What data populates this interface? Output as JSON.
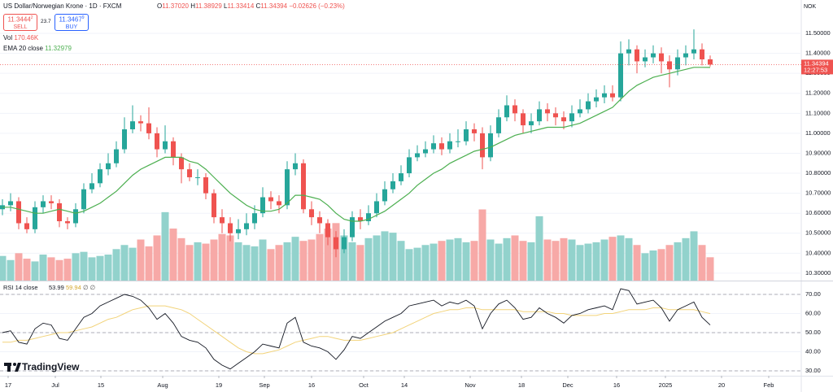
{
  "header": {
    "symbol": "US Dollar/Norwegian Krone · 1D · FXCM",
    "o_key": "O",
    "o": "11.37020",
    "h_key": "H",
    "h": "11.38929",
    "l_key": "L",
    "l": "11.33414",
    "c_key": "C",
    "change": "−0.02626 (−0.23%)",
    "sell_price": "11.3444",
    "sell_sup": "2",
    "sell": "SELL",
    "spread": "23.7",
    "buy_price": "11.3467",
    "buy_sup": "9",
    "buy": "BUY",
    "vol_key": "Vol",
    "vol": "170.46K",
    "currency": "NOK",
    "countdown": "12:27:53",
    "rsi_nulls": "∅ ∅",
    "logo": "TradingView"
  },
  "chart_data": [
    {
      "type": "candlestick",
      "up_color": "#26a69a",
      "down_color": "#ef5350",
      "xlim": [
        -0.3,
        98.2
      ],
      "ylim": [
        10.263,
        11.667
      ],
      "yticks": [
        {
          "value": 10.3,
          "label": "10.30000"
        },
        {
          "value": 10.4,
          "label": "10.40000"
        },
        {
          "value": 10.5,
          "label": "10.50000"
        },
        {
          "value": 10.6,
          "label": "10.60000"
        },
        {
          "value": 10.7,
          "label": "10.70000"
        },
        {
          "value": 10.8,
          "label": "10.80000"
        },
        {
          "value": 10.9,
          "label": "10.90000"
        },
        {
          "value": 11.0,
          "label": "11.00000"
        },
        {
          "value": 11.1,
          "label": "11.10000"
        },
        {
          "value": 11.2,
          "label": "11.20000"
        },
        {
          "value": 11.3,
          "label": "11.30000"
        },
        {
          "value": 11.4,
          "label": "11.40000"
        },
        {
          "value": 11.5,
          "label": "11.50000"
        }
      ],
      "open": [
        10.62,
        10.64,
        10.66,
        10.55,
        10.52,
        10.63,
        10.66,
        10.65,
        10.56,
        10.55,
        10.62,
        10.72,
        10.75,
        10.82,
        10.85,
        10.92,
        11.02,
        11.06,
        11.05,
        11.0,
        10.92,
        10.96,
        10.88,
        10.82,
        10.78,
        10.78,
        10.7,
        10.58,
        10.55,
        10.5,
        10.52,
        10.55,
        10.6,
        10.68,
        10.66,
        10.64,
        10.82,
        10.85,
        10.62,
        10.58,
        10.55,
        10.48,
        10.42,
        10.48,
        10.58,
        10.56,
        10.6,
        10.66,
        10.72,
        10.76,
        10.8,
        10.88,
        10.9,
        10.92,
        10.95,
        10.92,
        10.96,
        10.96,
        11.02,
        11.0,
        10.88,
        11.0,
        11.08,
        11.14,
        11.1,
        11.04,
        11.06,
        11.12,
        11.1,
        11.08,
        11.06,
        11.1,
        11.12,
        11.16,
        11.18,
        11.2,
        11.18,
        11.4,
        11.42,
        11.36,
        11.38,
        11.4,
        11.36,
        11.32,
        11.38,
        11.4,
        11.42,
        11.3702
      ],
      "high": [
        10.67,
        10.7,
        10.68,
        10.58,
        10.66,
        10.69,
        10.69,
        10.67,
        10.58,
        10.65,
        10.75,
        10.8,
        10.85,
        10.9,
        10.96,
        11.08,
        11.14,
        11.09,
        11.13,
        11.03,
        11.04,
        10.98,
        10.9,
        10.85,
        10.82,
        10.8,
        10.72,
        10.62,
        10.58,
        10.57,
        10.6,
        10.64,
        10.73,
        10.71,
        10.69,
        10.86,
        10.9,
        10.87,
        10.66,
        10.61,
        10.57,
        10.51,
        10.52,
        10.61,
        10.62,
        10.64,
        10.7,
        10.76,
        10.8,
        10.84,
        10.92,
        10.94,
        10.96,
        10.99,
        10.98,
        11.0,
        11.02,
        11.06,
        11.05,
        11.03,
        11.04,
        11.12,
        11.19,
        11.17,
        11.12,
        11.1,
        11.16,
        11.15,
        11.13,
        11.11,
        11.14,
        11.17,
        11.2,
        11.22,
        11.24,
        11.24,
        11.46,
        11.47,
        11.44,
        11.42,
        11.44,
        11.43,
        11.39,
        11.42,
        11.44,
        11.52,
        11.45,
        11.38929
      ],
      "low": [
        10.59,
        10.61,
        10.52,
        10.5,
        10.5,
        10.6,
        10.62,
        10.53,
        10.52,
        10.53,
        10.6,
        10.7,
        10.73,
        10.79,
        10.83,
        10.9,
        11.0,
        11.01,
        10.97,
        10.88,
        10.9,
        10.84,
        10.75,
        10.76,
        10.74,
        10.67,
        10.55,
        10.5,
        10.46,
        10.47,
        10.49,
        10.52,
        10.58,
        10.62,
        10.6,
        10.62,
        10.79,
        10.6,
        10.54,
        10.5,
        10.44,
        10.38,
        10.4,
        10.46,
        10.52,
        10.54,
        10.58,
        10.64,
        10.7,
        10.74,
        10.78,
        10.86,
        10.88,
        10.9,
        10.89,
        10.9,
        10.93,
        10.94,
        10.96,
        10.82,
        10.86,
        10.98,
        11.06,
        11.06,
        11.0,
        11.0,
        11.04,
        11.06,
        11.04,
        11.02,
        11.03,
        11.08,
        11.1,
        11.13,
        11.15,
        11.16,
        11.16,
        11.34,
        11.3,
        11.33,
        11.35,
        11.3,
        11.23,
        11.29,
        11.34,
        11.37,
        11.34,
        11.33414
      ],
      "close": [
        10.64,
        10.66,
        10.55,
        10.52,
        10.63,
        10.66,
        10.65,
        10.56,
        10.55,
        10.62,
        10.72,
        10.75,
        10.82,
        10.85,
        10.92,
        11.02,
        11.06,
        11.05,
        11.0,
        10.92,
        10.96,
        10.88,
        10.82,
        10.78,
        10.78,
        10.7,
        10.58,
        10.55,
        10.5,
        10.52,
        10.55,
        10.6,
        10.68,
        10.66,
        10.64,
        10.82,
        10.85,
        10.62,
        10.58,
        10.55,
        10.48,
        10.42,
        10.48,
        10.58,
        10.56,
        10.6,
        10.66,
        10.72,
        10.76,
        10.8,
        10.88,
        10.9,
        10.92,
        10.95,
        10.92,
        10.96,
        10.96,
        11.02,
        11.0,
        10.88,
        11.0,
        11.08,
        11.14,
        11.1,
        11.04,
        11.06,
        11.12,
        11.1,
        11.08,
        11.06,
        11.1,
        11.12,
        11.16,
        11.18,
        11.2,
        11.18,
        11.4,
        11.42,
        11.36,
        11.38,
        11.4,
        11.36,
        11.32,
        11.38,
        11.4,
        11.42,
        11.37,
        11.34394
      ],
      "ema": {
        "name": "EMA 20 close",
        "color": "#4caf50",
        "values": [
          10.63,
          10.63,
          10.62,
          10.61,
          10.6,
          10.6,
          10.61,
          10.62,
          10.61,
          10.6,
          10.61,
          10.63,
          10.65,
          10.68,
          10.71,
          10.75,
          10.79,
          10.82,
          10.84,
          10.86,
          10.88,
          10.88,
          10.88,
          10.86,
          10.85,
          10.82,
          10.78,
          10.74,
          10.7,
          10.67,
          10.64,
          10.62,
          10.61,
          10.61,
          10.62,
          10.65,
          10.69,
          10.69,
          10.68,
          10.67,
          10.64,
          10.6,
          10.57,
          10.56,
          10.56,
          10.57,
          10.59,
          10.61,
          10.64,
          10.67,
          10.7,
          10.74,
          10.77,
          10.8,
          10.82,
          10.85,
          10.87,
          10.89,
          10.91,
          10.92,
          10.93,
          10.95,
          10.97,
          10.99,
          11.0,
          11.01,
          11.02,
          11.03,
          11.03,
          11.03,
          11.04,
          11.05,
          11.07,
          11.09,
          11.11,
          11.13,
          11.17,
          11.21,
          11.24,
          11.26,
          11.28,
          11.29,
          11.3,
          11.31,
          11.32,
          11.33,
          11.33,
          11.32979
        ]
      },
      "volume": {
        "up_color": "#92d2cc",
        "down_color": "#f7a9a7",
        "vlim": [
          0,
          2050
        ],
        "values": [
          180,
          150,
          200,
          160,
          140,
          190,
          170,
          150,
          160,
          200,
          210,
          170,
          180,
          190,
          230,
          260,
          240,
          300,
          250,
          330,
          500,
          380,
          310,
          260,
          280,
          270,
          300,
          340,
          330,
          280,
          260,
          250,
          300,
          230,
          260,
          280,
          320,
          290,
          300,
          340,
          380,
          420,
          330,
          280,
          260,
          310,
          330,
          360,
          350,
          290,
          230,
          240,
          260,
          270,
          290,
          300,
          310,
          280,
          290,
          520,
          300,
          270,
          310,
          330,
          290,
          280,
          470,
          300,
          290,
          310,
          300,
          260,
          270,
          280,
          300,
          320,
          330,
          310,
          260,
          200,
          220,
          230,
          260,
          280,
          310,
          360,
          260,
          170.46
        ]
      }
    },
    {
      "type": "line",
      "title": "RSI 14 close",
      "xlim": [
        -0.3,
        98.2
      ],
      "ylim": [
        27.45,
        75.96
      ],
      "yticks": [
        {
          "value": 30,
          "label": "30.00"
        },
        {
          "value": 40,
          "label": "40.00"
        },
        {
          "value": 50,
          "label": "50.00"
        },
        {
          "value": 60,
          "label": "60.00"
        },
        {
          "value": 70,
          "label": "70.00"
        }
      ],
      "levels": [
        70,
        50,
        30
      ],
      "xticks": [
        {
          "value": 0.7,
          "label": "17"
        },
        {
          "value": 6.5,
          "label": "Jul"
        },
        {
          "value": 12.1,
          "label": "15"
        },
        {
          "value": 19.7,
          "label": "Aug"
        },
        {
          "value": 26.6,
          "label": "19"
        },
        {
          "value": 32.2,
          "label": "Sep"
        },
        {
          "value": 38,
          "label": "16"
        },
        {
          "value": 44.4,
          "label": "Oct"
        },
        {
          "value": 49.4,
          "label": "14"
        },
        {
          "value": 57.5,
          "label": "Nov"
        },
        {
          "value": 63.8,
          "label": "18"
        },
        {
          "value": 69.5,
          "label": "Dec"
        },
        {
          "value": 75.5,
          "label": "16"
        },
        {
          "value": 81.5,
          "label": "2025"
        },
        {
          "value": 88.4,
          "label": "20"
        },
        {
          "value": 94.2,
          "label": "Feb"
        }
      ],
      "series": [
        {
          "color": "#131722",
          "values": [
            50,
            51,
            45,
            44,
            52,
            55,
            54,
            47,
            46,
            52,
            58,
            60,
            64,
            66,
            68,
            70,
            69,
            67,
            63,
            57,
            60,
            55,
            48,
            46,
            45,
            42,
            36,
            33,
            31,
            34,
            37,
            40,
            44,
            43,
            42,
            55,
            58,
            45,
            43,
            42,
            40,
            36,
            41,
            48,
            47,
            50,
            53,
            56,
            58,
            60,
            64,
            65,
            66,
            67,
            64,
            66,
            65,
            67,
            64,
            52,
            60,
            65,
            67,
            63,
            57,
            58,
            63,
            60,
            58,
            55,
            59,
            60,
            62,
            63,
            64,
            62,
            73,
            72,
            65,
            66,
            67,
            63,
            56,
            62,
            64,
            66,
            58,
            53.99
          ]
        },
        {
          "color": "#f2d37a",
          "values": [
            45,
            45,
            46,
            46,
            47,
            48,
            49,
            50,
            50,
            51,
            52,
            53,
            55,
            57,
            58,
            60,
            62,
            63,
            64,
            64,
            64,
            63,
            62,
            60,
            57,
            54,
            51,
            48,
            45,
            42,
            40,
            39,
            39,
            40,
            41,
            43,
            45,
            46,
            47,
            48,
            48,
            47,
            46,
            46,
            46,
            47,
            48,
            49,
            50,
            52,
            54,
            56,
            58,
            60,
            61,
            62,
            62,
            63,
            63,
            62,
            62,
            62,
            62,
            62,
            61,
            61,
            61,
            61,
            60,
            60,
            59,
            59,
            59,
            59,
            60,
            60,
            61,
            62,
            62,
            62,
            63,
            63,
            62,
            62,
            62,
            62,
            61,
            59.94
          ]
        }
      ]
    }
  ]
}
